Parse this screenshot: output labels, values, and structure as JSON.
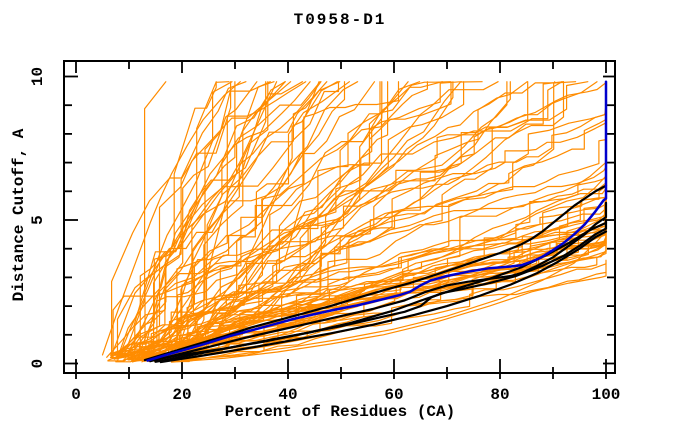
{
  "chart_data": {
    "type": "line",
    "title": "T0958-D1",
    "xlabel": "Percent of Residues (CA)",
    "ylabel": "Distance Cutoff, A",
    "xlim": [
      0,
      100
    ],
    "ylim": [
      0,
      10
    ],
    "x_ticks": [
      0,
      20,
      40,
      60,
      80,
      100
    ],
    "x_tick_labels": [
      "0",
      "20",
      "40",
      "60",
      "80",
      "100"
    ],
    "x_minor_ticks": [
      10,
      30,
      50,
      70,
      90
    ],
    "y_ticks": [
      0,
      5,
      10
    ],
    "y_tick_labels": [
      "0",
      "5",
      "10"
    ],
    "y_minor_ticks": [
      1,
      2,
      3,
      4,
      6,
      7,
      8,
      9
    ],
    "grid": false,
    "legend": "none",
    "colors": {
      "orange": "#ff8c00",
      "blue": "#0000cd",
      "black": "#000000",
      "frame": "#000000",
      "background": "#ffffff",
      "text": "#000000"
    },
    "series": {
      "blue_curve": {
        "color": "#0000cd",
        "width": 2.5,
        "points": [
          [
            13.5,
            0.1
          ],
          [
            17,
            0.3
          ],
          [
            21,
            0.5
          ],
          [
            25,
            0.72
          ],
          [
            29,
            0.95
          ],
          [
            33,
            1.15
          ],
          [
            37,
            1.35
          ],
          [
            41,
            1.55
          ],
          [
            45,
            1.72
          ],
          [
            49,
            1.88
          ],
          [
            53,
            2.02
          ],
          [
            57,
            2.2
          ],
          [
            61,
            2.38
          ],
          [
            63,
            2.5
          ],
          [
            65,
            2.72
          ],
          [
            67,
            2.9
          ],
          [
            70,
            3.05
          ],
          [
            74,
            3.2
          ],
          [
            78,
            3.32
          ],
          [
            82,
            3.38
          ],
          [
            84,
            3.42
          ],
          [
            86,
            3.55
          ],
          [
            88,
            3.72
          ],
          [
            90,
            3.95
          ],
          [
            92,
            4.2
          ],
          [
            94,
            4.5
          ],
          [
            96,
            4.85
          ],
          [
            98,
            5.3
          ],
          [
            99.5,
            5.68
          ],
          [
            100,
            5.75
          ],
          [
            100,
            9.82
          ]
        ]
      },
      "black_curves": {
        "color": "#000000",
        "width": 2.2,
        "curves": [
          [
            [
              13,
              0.12
            ],
            [
              18,
              0.4
            ],
            [
              23,
              0.68
            ],
            [
              28,
              0.95
            ],
            [
              33,
              1.25
            ],
            [
              38,
              1.5
            ],
            [
              43,
              1.75
            ],
            [
              48,
              2.0
            ],
            [
              53,
              2.28
            ],
            [
              58,
              2.55
            ],
            [
              63,
              2.8
            ],
            [
              68,
              3.1
            ],
            [
              72,
              3.35
            ],
            [
              76,
              3.6
            ],
            [
              80,
              3.85
            ],
            [
              84,
              4.15
            ],
            [
              86,
              4.35
            ],
            [
              88,
              4.6
            ],
            [
              90,
              4.9
            ],
            [
              92,
              5.2
            ],
            [
              94,
              5.5
            ],
            [
              96,
              5.75
            ],
            [
              98,
              6.0
            ],
            [
              100,
              6.2
            ]
          ],
          [
            [
              14,
              0.08
            ],
            [
              20,
              0.35
            ],
            [
              26,
              0.62
            ],
            [
              32,
              0.9
            ],
            [
              38,
              1.15
            ],
            [
              44,
              1.4
            ],
            [
              50,
              1.65
            ],
            [
              56,
              1.9
            ],
            [
              62,
              2.2
            ],
            [
              66,
              2.5
            ],
            [
              70,
              2.72
            ],
            [
              74,
              2.85
            ],
            [
              78,
              2.95
            ],
            [
              82,
              3.05
            ],
            [
              84,
              3.15
            ],
            [
              87,
              3.4
            ],
            [
              90,
              3.7
            ],
            [
              93,
              4.1
            ],
            [
              96,
              4.5
            ],
            [
              98,
              4.85
            ],
            [
              100,
              5.1
            ],
            [
              100,
              5.6
            ]
          ],
          [
            [
              15,
              0.06
            ],
            [
              22,
              0.3
            ],
            [
              29,
              0.55
            ],
            [
              36,
              0.8
            ],
            [
              43,
              1.05
            ],
            [
              50,
              1.3
            ],
            [
              56,
              1.55
            ],
            [
              62,
              1.8
            ],
            [
              65,
              2.0
            ],
            [
              67,
              2.3
            ],
            [
              69,
              2.45
            ],
            [
              73,
              2.6
            ],
            [
              78,
              2.8
            ],
            [
              83,
              3.05
            ],
            [
              88,
              3.4
            ],
            [
              92,
              3.75
            ],
            [
              95,
              4.1
            ],
            [
              98,
              4.5
            ],
            [
              100,
              4.7
            ],
            [
              100,
              5.0
            ]
          ],
          [
            [
              16,
              0.05
            ],
            [
              24,
              0.28
            ],
            [
              32,
              0.52
            ],
            [
              40,
              0.78
            ],
            [
              48,
              1.05
            ],
            [
              56,
              1.35
            ],
            [
              64,
              1.7
            ],
            [
              70,
              2.0
            ],
            [
              76,
              2.35
            ],
            [
              82,
              2.75
            ],
            [
              87,
              3.15
            ],
            [
              91,
              3.55
            ],
            [
              95,
              4.0
            ],
            [
              98,
              4.4
            ],
            [
              100,
              4.6
            ]
          ],
          [
            [
              14,
              0.1
            ],
            [
              20,
              0.3
            ],
            [
              28,
              0.52
            ],
            [
              36,
              0.78
            ],
            [
              44,
              1.08
            ],
            [
              52,
              1.42
            ],
            [
              60,
              1.85
            ],
            [
              66,
              2.25
            ],
            [
              72,
              2.62
            ],
            [
              78,
              2.95
            ],
            [
              84,
              3.35
            ],
            [
              89,
              3.8
            ],
            [
              93,
              4.2
            ],
            [
              97,
              4.65
            ],
            [
              100,
              4.9
            ]
          ]
        ]
      },
      "orange_curves_explicit": {
        "color": "#ff8c00",
        "width": 1.2,
        "curves": [
          [
            [
              5,
              0.3
            ],
            [
              6.5,
              1.1
            ],
            [
              8,
              1.9
            ],
            [
              10,
              2.9
            ],
            [
              12,
              3.9
            ],
            [
              14,
              4.9
            ],
            [
              16,
              5.8
            ],
            [
              18,
              6.6
            ],
            [
              21,
              7.6
            ],
            [
              24,
              8.5
            ],
            [
              28,
              9.35
            ],
            [
              31,
              9.82
            ]
          ],
          [
            [
              18,
              0.05
            ],
            [
              28,
              0.18
            ],
            [
              38,
              0.4
            ],
            [
              48,
              0.68
            ],
            [
              58,
              1.0
            ],
            [
              68,
              1.45
            ],
            [
              78,
              2.0
            ],
            [
              86,
              2.5
            ],
            [
              93,
              2.8
            ],
            [
              99,
              3.0
            ],
            [
              100,
              3.05
            ],
            [
              100,
              3.6
            ]
          ],
          [
            [
              16,
              0.1
            ],
            [
              26,
              0.32
            ],
            [
              36,
              0.6
            ],
            [
              46,
              0.95
            ],
            [
              56,
              1.35
            ],
            [
              66,
              1.8
            ],
            [
              76,
              2.35
            ],
            [
              84,
              2.9
            ],
            [
              90,
              3.3
            ],
            [
              95,
              3.6
            ],
            [
              100,
              3.9
            ],
            [
              100,
              4.45
            ]
          ],
          [
            [
              20,
              0.1
            ],
            [
              30,
              0.3
            ],
            [
              40,
              0.55
            ],
            [
              50,
              0.85
            ],
            [
              60,
              1.2
            ],
            [
              70,
              1.65
            ],
            [
              80,
              2.25
            ],
            [
              88,
              2.9
            ],
            [
              94,
              3.5
            ],
            [
              98,
              4.2
            ],
            [
              100,
              4.6
            ],
            [
              100,
              9.82
            ]
          ]
        ]
      },
      "orange_ensemble": {
        "procedural_approximation": true,
        "color": "#ff8c00",
        "width": 1.2,
        "count": 100,
        "seed": 20190419,
        "x_start_min": 5.5,
        "x_start_max": 20,
        "y_start_min": 0.05,
        "y_start_max": 0.35,
        "dx_min": 1.8,
        "dx_max": 4.2,
        "speed_base": 0.042,
        "speed_scale": 0.45,
        "speed_pow": 3,
        "slope_jitter_min": 0.25,
        "slope_jitter_max": 1.75,
        "plateau_prob": 0.16,
        "jump_prob": 0.12,
        "jump_scale_min": 4,
        "jump_scale_max": 13,
        "jump_cap": 2.6,
        "cap": 9.82,
        "end_jump_prob": 0.55,
        "end_jump_min": 0.8,
        "end_jump_max": 4.2
      }
    }
  }
}
